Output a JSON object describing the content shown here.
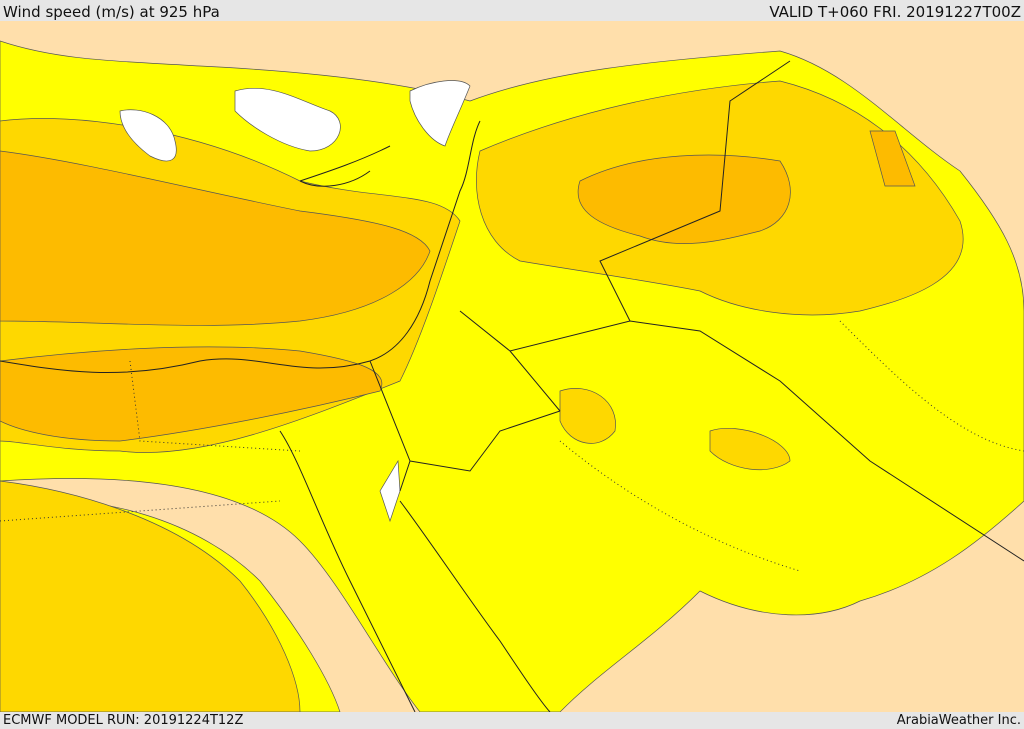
{
  "header": {
    "title": "Wind speed (m/s) at 925 hPa",
    "valid": "VALID T+060 FRI. 20191227T00Z"
  },
  "footer": {
    "model_run": "ECMWF MODEL RUN: 20191224T12Z",
    "credit": "ArabiaWeather Inc."
  }
}
